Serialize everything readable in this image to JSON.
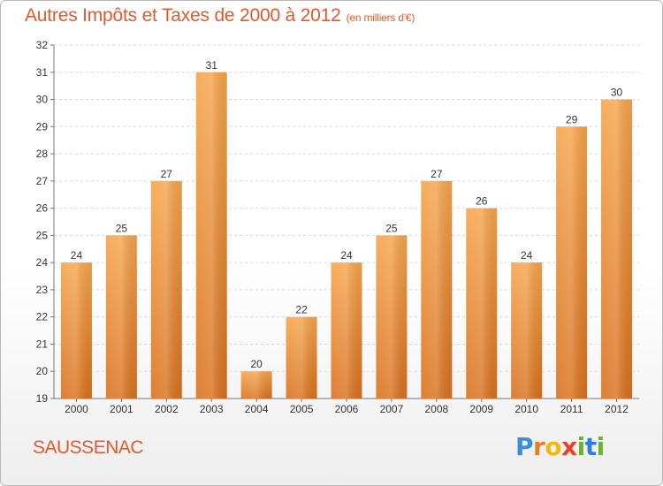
{
  "header": {
    "title": "Autres Impôts et Taxes de 2000 à 2012",
    "unit": "(en milliers d'€)"
  },
  "footer": {
    "commune": "SAUSSENAC",
    "logo": "Proxiti"
  },
  "colors": {
    "title": "#e05a2b",
    "bar_top": "#f6a54d",
    "bar_bottom": "#d9711f",
    "grid": "#d8d8d8",
    "axis": "#777777"
  },
  "chart_data": {
    "type": "bar",
    "title": "Autres Impôts et Taxes de 2000 à 2012",
    "subtitle": "(en milliers d'€)",
    "xlabel": "",
    "ylabel": "",
    "categories": [
      "2000",
      "2001",
      "2002",
      "2003",
      "2004",
      "2005",
      "2006",
      "2007",
      "2008",
      "2009",
      "2010",
      "2011",
      "2012"
    ],
    "values": [
      24,
      25,
      27,
      31,
      20,
      22,
      24,
      25,
      27,
      26,
      24,
      29,
      30
    ],
    "ylim": [
      19,
      32
    ],
    "yticks": [
      19,
      20,
      21,
      22,
      23,
      24,
      25,
      26,
      27,
      28,
      29,
      30,
      31,
      32
    ],
    "grid": "horizontal dashed",
    "data_labels": true,
    "legend": "none"
  }
}
